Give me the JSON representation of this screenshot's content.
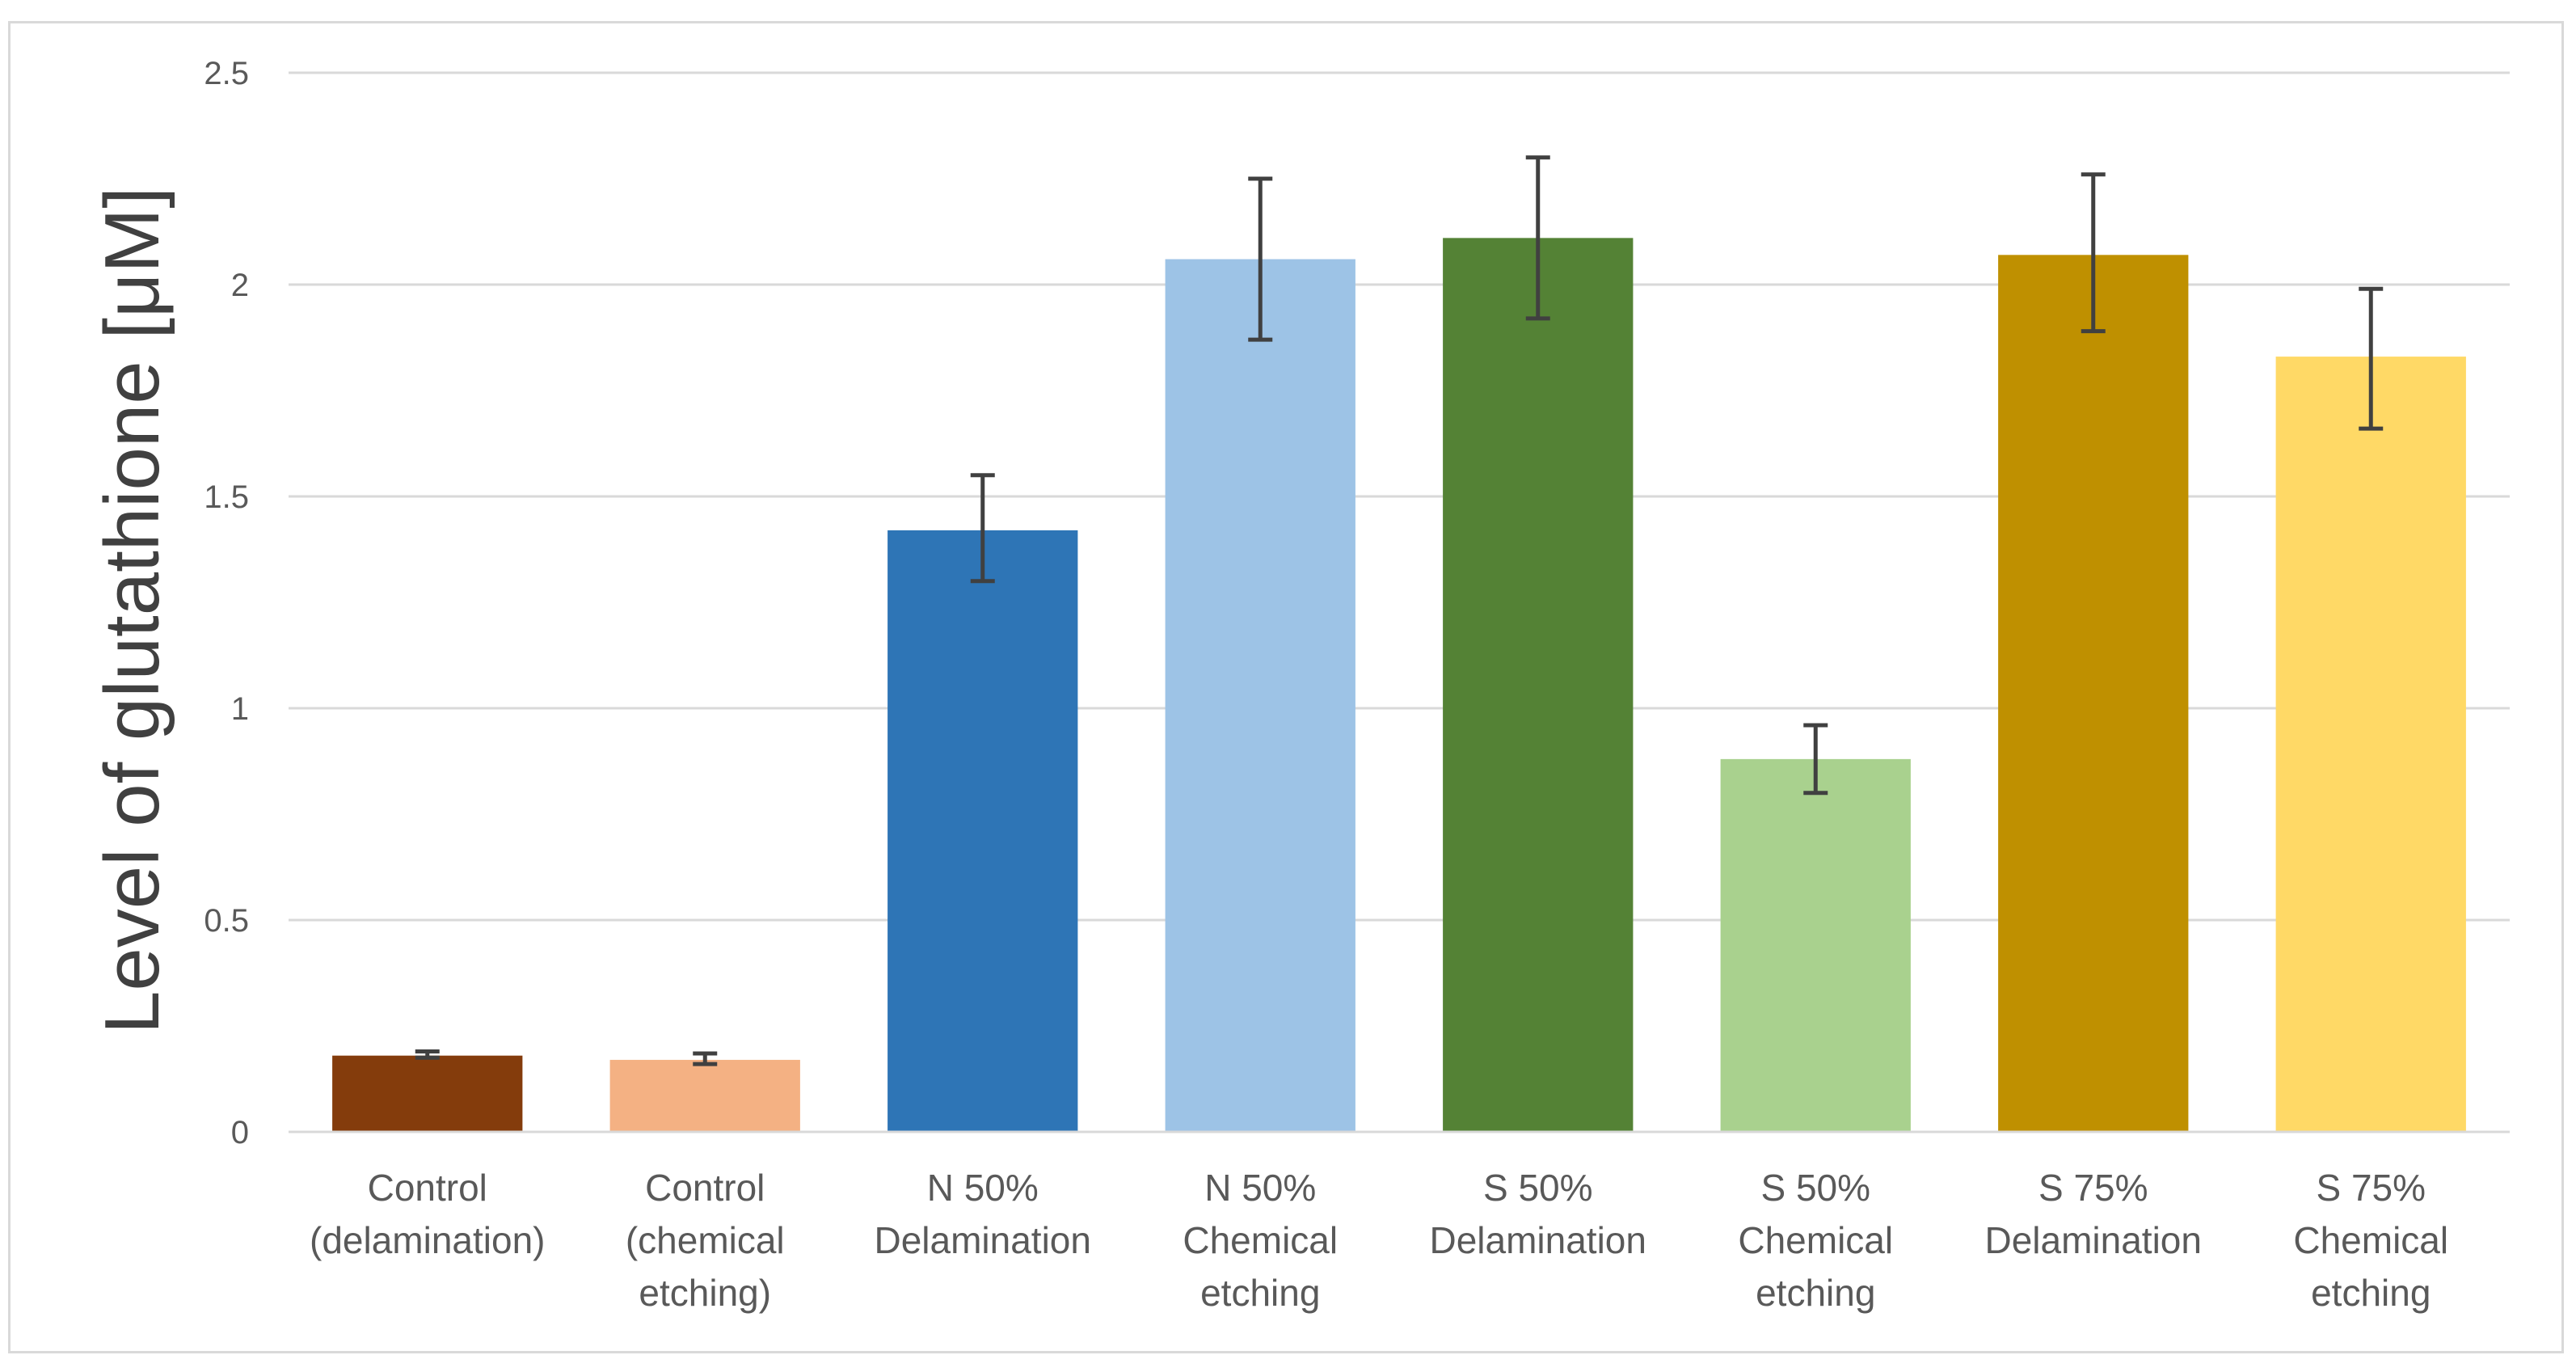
{
  "chart_data": {
    "type": "bar",
    "title": "",
    "xlabel": "",
    "ylabel": "Level of  glutathione [μM]",
    "ylim": [
      0,
      2.5
    ],
    "yticks": [
      0,
      0.5,
      1,
      1.5,
      2,
      2.5
    ],
    "ytick_labels": [
      "0",
      "0.5",
      "1",
      "1.5",
      "2",
      "2.5"
    ],
    "grid": true,
    "categories": [
      [
        "Control",
        "(delamination)"
      ],
      [
        "Control",
        "(chemical",
        "etching)"
      ],
      [
        "N 50%",
        "Delamination"
      ],
      [
        "N 50%",
        "Chemical",
        "etching"
      ],
      [
        "S 50%",
        "Delamination"
      ],
      [
        "S 50%",
        "Chemical",
        "etching"
      ],
      [
        "S 75%",
        "Delamination"
      ],
      [
        "S 75%",
        "Chemical",
        "etching"
      ]
    ],
    "values": [
      0.18,
      0.17,
      1.42,
      2.06,
      2.11,
      0.88,
      2.07,
      1.83
    ],
    "error_low": [
      0.175,
      0.16,
      1.3,
      1.87,
      1.92,
      0.8,
      1.89,
      1.66
    ],
    "error_high": [
      0.19,
      0.185,
      1.55,
      2.25,
      2.3,
      0.96,
      2.26,
      1.99
    ],
    "colors": [
      "#843c0c",
      "#f4b183",
      "#2e75b6",
      "#9dc3e6",
      "#548235",
      "#a9d18e",
      "#bf9000",
      "#ffd966"
    ],
    "gridline_color": "#d9d9d9",
    "axis_color": "#d9d9d9",
    "error_bar_color": "#404040"
  }
}
